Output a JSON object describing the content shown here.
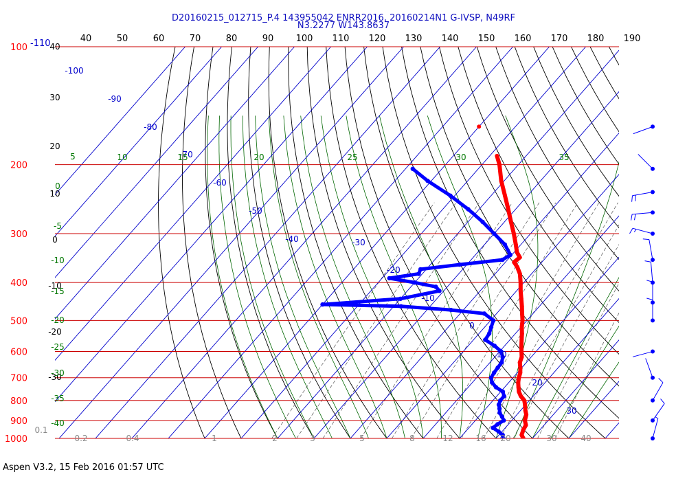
{
  "header": {
    "title_line1": "D20160215_012715_P.4 143955042 ENRR2016, 20160214N1 G-IVSP, N49RF",
    "title_line2": "N3.2277 W143.8637"
  },
  "footer": {
    "text": "Aspen V3.2, 15 Feb 2016  01:57 UTC"
  },
  "colors": {
    "temperature": "#ff0000",
    "dewpoint": "#0000ff",
    "isobar": "#cc0000",
    "isotherm": "#0000cc",
    "dry_adiabat": "#000000",
    "moist_adiabat": "#006600",
    "mixing_ratio": "#555555",
    "wind_barb": "#0000ff"
  },
  "chart_data": {
    "type": "scatter",
    "subtype": "skew-T log-P diagram",
    "pressure_labels": [
      "100",
      "200",
      "300",
      "400",
      "500",
      "600",
      "700",
      "800",
      "900",
      "1000"
    ],
    "isotherm_labels_top": [
      "-110",
      "40",
      "50",
      "60",
      "70",
      "80",
      "90",
      "100",
      "110",
      "120",
      "130",
      "140",
      "150",
      "160",
      "170",
      "180",
      "190"
    ],
    "isotherm_labels_diagonal": [
      "-100",
      "-90",
      "-80",
      "-70",
      "-60",
      "-50",
      "-40",
      "-30",
      "-20",
      "-10",
      "0",
      "10",
      "20",
      "30"
    ],
    "dry_adiabat_labels": [
      "40",
      "30",
      "20",
      "10",
      "0",
      "-10",
      "-20",
      "-30"
    ],
    "moist_adiabat_labels_left": [
      "5",
      "0",
      "-5",
      "-10",
      "-15",
      "-20",
      "-25",
      "-30",
      "-35",
      "-40"
    ],
    "moist_adiabat_labels_top": [
      "10",
      "15",
      "20",
      "25",
      "30",
      "35"
    ],
    "mixing_ratio_labels": [
      "0.1",
      "0.2",
      "0.4",
      "1",
      "2",
      "3",
      "5",
      "8",
      "12",
      "16",
      "20",
      "30",
      "40"
    ],
    "temperature_profile": [
      {
        "p": 1000,
        "t": 27.5
      },
      {
        "p": 980,
        "t": 26.2
      },
      {
        "p": 950,
        "t": 25.4
      },
      {
        "p": 925,
        "t": 25.0
      },
      {
        "p": 900,
        "t": 23.6
      },
      {
        "p": 870,
        "t": 22.6
      },
      {
        "p": 850,
        "t": 21.4
      },
      {
        "p": 820,
        "t": 19.8
      },
      {
        "p": 800,
        "t": 18.6
      },
      {
        "p": 780,
        "t": 16.6
      },
      {
        "p": 760,
        "t": 15.0
      },
      {
        "p": 740,
        "t": 13.8
      },
      {
        "p": 720,
        "t": 12.6
      },
      {
        "p": 700,
        "t": 11.6
      },
      {
        "p": 680,
        "t": 10.8
      },
      {
        "p": 660,
        "t": 9.6
      },
      {
        "p": 640,
        "t": 8.2
      },
      {
        "p": 620,
        "t": 7.4
      },
      {
        "p": 600,
        "t": 6.0
      },
      {
        "p": 580,
        "t": 4.6
      },
      {
        "p": 560,
        "t": 3.2
      },
      {
        "p": 540,
        "t": 1.8
      },
      {
        "p": 520,
        "t": 0.2
      },
      {
        "p": 500,
        "t": -1.2
      },
      {
        "p": 480,
        "t": -3.0
      },
      {
        "p": 460,
        "t": -4.8
      },
      {
        "p": 440,
        "t": -6.8
      },
      {
        "p": 420,
        "t": -8.9
      },
      {
        "p": 400,
        "t": -10.9
      },
      {
        "p": 380,
        "t": -13.2
      },
      {
        "p": 365,
        "t": -15.6
      },
      {
        "p": 355,
        "t": -17.6
      },
      {
        "p": 345,
        "t": -17.2
      },
      {
        "p": 335,
        "t": -19.2
      },
      {
        "p": 320,
        "t": -21.4
      },
      {
        "p": 300,
        "t": -24.6
      },
      {
        "p": 280,
        "t": -28.2
      },
      {
        "p": 260,
        "t": -32.0
      },
      {
        "p": 240,
        "t": -36.2
      },
      {
        "p": 220,
        "t": -40.8
      },
      {
        "p": 200,
        "t": -45.2
      },
      {
        "p": 190,
        "t": -48.0
      }
    ],
    "dewpoint_profile": [
      {
        "p": 1000,
        "d": 22.0
      },
      {
        "p": 980,
        "d": 21.0
      },
      {
        "p": 960,
        "d": 19.0
      },
      {
        "p": 940,
        "d": 16.6
      },
      {
        "p": 920,
        "d": 17.0
      },
      {
        "p": 900,
        "d": 17.8
      },
      {
        "p": 880,
        "d": 16.4
      },
      {
        "p": 860,
        "d": 14.8
      },
      {
        "p": 840,
        "d": 13.8
      },
      {
        "p": 820,
        "d": 12.6
      },
      {
        "p": 800,
        "d": 12.0
      },
      {
        "p": 780,
        "d": 12.0
      },
      {
        "p": 760,
        "d": 10.6
      },
      {
        "p": 740,
        "d": 7.6
      },
      {
        "p": 720,
        "d": 5.4
      },
      {
        "p": 700,
        "d": 4.0
      },
      {
        "p": 680,
        "d": 3.6
      },
      {
        "p": 660,
        "d": 3.4
      },
      {
        "p": 640,
        "d": 3.2
      },
      {
        "p": 620,
        "d": 2.2
      },
      {
        "p": 600,
        "d": 0.4
      },
      {
        "p": 580,
        "d": -2.8
      },
      {
        "p": 560,
        "d": -6.8
      },
      {
        "p": 540,
        "d": -7.2
      },
      {
        "p": 520,
        "d": -8.2
      },
      {
        "p": 500,
        "d": -9.2
      },
      {
        "p": 480,
        "d": -13.4
      },
      {
        "p": 470,
        "d": -23.4
      },
      {
        "p": 460,
        "d": -38.0
      },
      {
        "p": 455,
        "d": -60.0
      },
      {
        "p": 440,
        "d": -40.0
      },
      {
        "p": 420,
        "d": -31.2
      },
      {
        "p": 410,
        "d": -33.2
      },
      {
        "p": 400,
        "d": -40.0
      },
      {
        "p": 390,
        "d": -48.0
      },
      {
        "p": 380,
        "d": -41.0
      },
      {
        "p": 370,
        "d": -41.6
      },
      {
        "p": 360,
        "d": -32.0
      },
      {
        "p": 350,
        "d": -21.4
      },
      {
        "p": 340,
        "d": -20.4
      },
      {
        "p": 320,
        "d": -24.4
      },
      {
        "p": 300,
        "d": -30.0
      },
      {
        "p": 280,
        "d": -36.0
      },
      {
        "p": 260,
        "d": -43.0
      },
      {
        "p": 240,
        "d": -51.2
      },
      {
        "p": 220,
        "d": -61.0
      },
      {
        "p": 205,
        "d": -68.0
      }
    ],
    "isolated_temperature_point": {
      "p": 160,
      "t": -60.0
    },
    "wind_barbs": [
      {
        "p": 160,
        "speed": "light"
      },
      {
        "p": 205,
        "speed": "light"
      },
      {
        "p": 235,
        "speed": "20kt"
      },
      {
        "p": 265,
        "speed": "20kt"
      },
      {
        "p": 300,
        "speed": "15kt"
      },
      {
        "p": 350,
        "speed": "10kt"
      },
      {
        "p": 400,
        "speed": "10kt"
      },
      {
        "p": 450,
        "speed": "10kt"
      },
      {
        "p": 500,
        "speed": "10kt"
      },
      {
        "p": 600,
        "speed": "light"
      },
      {
        "p": 700,
        "speed": "light"
      },
      {
        "p": 800,
        "speed": "10kt"
      },
      {
        "p": 900,
        "speed": "10kt"
      },
      {
        "p": 1000,
        "speed": "5kt"
      }
    ]
  }
}
